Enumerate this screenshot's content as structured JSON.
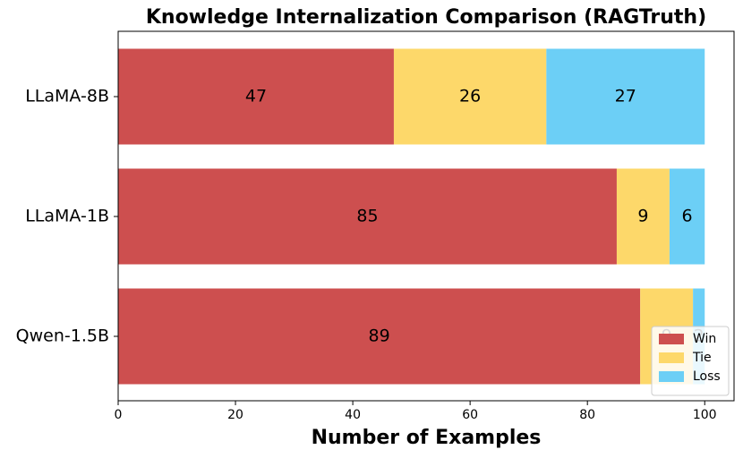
{
  "chart_data": {
    "type": "stacked-bar-horizontal",
    "title": "Knowledge Internalization Comparison (RAGTruth)",
    "xlabel": "Number of Examples",
    "categories": [
      "LLaMA-8B",
      "LLaMA-1B",
      "Qwen-1.5B"
    ],
    "series": [
      {
        "name": "Win",
        "color": "#cd4f4f",
        "values": [
          47,
          85,
          89
        ]
      },
      {
        "name": "Tie",
        "color": "#fdd86a",
        "values": [
          26,
          9,
          9
        ]
      },
      {
        "name": "Loss",
        "color": "#6ccff6",
        "values": [
          27,
          6,
          2
        ]
      }
    ],
    "xlim": [
      0,
      105
    ],
    "xticks": [
      0,
      20,
      40,
      60,
      80,
      100
    ],
    "legend": "lower right"
  }
}
